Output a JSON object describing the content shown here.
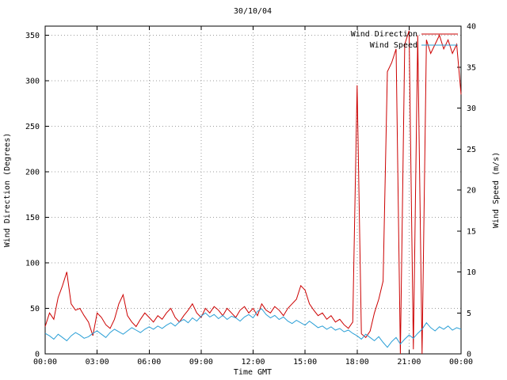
{
  "chart_data": {
    "type": "line",
    "title": "30/10/04",
    "xlabel": "Time GMT",
    "y_left_label": "Wind Direction (Degrees)",
    "y_right_label": "Wind Speed (m/s)",
    "grid": true,
    "legend_position": "top-right-inside",
    "x_range_hours": [
      0,
      24
    ],
    "x_tick_hours": [
      0,
      3,
      6,
      9,
      12,
      15,
      18,
      21,
      24
    ],
    "x_tick_labels": [
      "00:00",
      "03:00",
      "06:00",
      "09:00",
      "12:00",
      "15:00",
      "18:00",
      "21:00",
      "00:00"
    ],
    "y_left": {
      "range": [
        0,
        360
      ],
      "ticks": [
        0,
        50,
        100,
        150,
        200,
        250,
        300,
        350
      ]
    },
    "y_right": {
      "range": [
        0,
        40
      ],
      "ticks": [
        0,
        5,
        10,
        15,
        20,
        25,
        30,
        35,
        40
      ]
    },
    "grid_color": "#9c9c9c",
    "x_hours": [
      0,
      0.25,
      0.5,
      0.75,
      1,
      1.25,
      1.5,
      1.75,
      2,
      2.25,
      2.5,
      2.75,
      3,
      3.25,
      3.5,
      3.75,
      4,
      4.25,
      4.5,
      4.75,
      5,
      5.25,
      5.5,
      5.75,
      6,
      6.25,
      6.5,
      6.75,
      7,
      7.25,
      7.5,
      7.75,
      8,
      8.25,
      8.5,
      8.75,
      9,
      9.25,
      9.5,
      9.75,
      10,
      10.25,
      10.5,
      10.75,
      11,
      11.25,
      11.5,
      11.75,
      12,
      12.25,
      12.5,
      12.75,
      13,
      13.25,
      13.5,
      13.75,
      14,
      14.25,
      14.5,
      14.75,
      15,
      15.25,
      15.5,
      15.75,
      16,
      16.25,
      16.5,
      16.75,
      17,
      17.25,
      17.5,
      17.75,
      18,
      18.25,
      18.5,
      18.75,
      19,
      19.25,
      19.5,
      19.75,
      20,
      20.25,
      20.5,
      20.75,
      21,
      21.25,
      21.5,
      21.75,
      22,
      22.25,
      22.5,
      22.75,
      23,
      23.25,
      23.5,
      23.75,
      24
    ],
    "series": [
      {
        "name": "Wind Direction",
        "axis": "left",
        "color": "#cc0000",
        "values": [
          30,
          45,
          38,
          62,
          75,
          90,
          55,
          48,
          50,
          42,
          35,
          20,
          45,
          40,
          32,
          28,
          38,
          55,
          65,
          42,
          35,
          30,
          38,
          45,
          40,
          35,
          42,
          38,
          45,
          50,
          40,
          35,
          42,
          48,
          55,
          45,
          40,
          50,
          45,
          52,
          48,
          42,
          50,
          45,
          40,
          48,
          52,
          45,
          50,
          42,
          55,
          48,
          45,
          52,
          48,
          42,
          50,
          55,
          60,
          75,
          70,
          55,
          48,
          42,
          45,
          38,
          42,
          35,
          38,
          32,
          28,
          35,
          295,
          22,
          18,
          25,
          45,
          60,
          80,
          310,
          320,
          335,
          0,
          340,
          355,
          5,
          350,
          0,
          345,
          330,
          340,
          350,
          335,
          345,
          330,
          340,
          285
        ]
      },
      {
        "name": "Wind Speed",
        "axis": "right",
        "color": "#2a9fd6",
        "values": [
          2.5,
          2.2,
          1.8,
          2.4,
          2,
          1.6,
          2.2,
          2.6,
          2.3,
          1.9,
          2.1,
          2.5,
          2.8,
          2.4,
          2,
          2.6,
          3,
          2.7,
          2.4,
          2.8,
          3.2,
          2.9,
          2.6,
          3,
          3.3,
          3,
          3.4,
          3.1,
          3.5,
          3.8,
          3.4,
          3.9,
          4.2,
          3.8,
          4.4,
          4,
          4.6,
          5,
          4.5,
          4.8,
          4.3,
          4.7,
          4.2,
          4.6,
          4.4,
          4,
          4.5,
          4.8,
          4.4,
          5.2,
          5.5,
          4.8,
          4.4,
          4.7,
          4.2,
          4.5,
          4,
          3.7,
          4.1,
          3.8,
          3.5,
          4,
          3.6,
          3.2,
          3.4,
          3,
          3.3,
          2.9,
          3.1,
          2.7,
          2.9,
          2.5,
          2.2,
          1.8,
          2.4,
          2,
          1.6,
          2.1,
          1.4,
          0.8,
          1.5,
          2,
          1.2,
          1.8,
          2.3,
          1.9,
          2.5,
          3,
          3.8,
          3.2,
          2.8,
          3.3,
          3,
          3.4,
          2.9,
          3.2,
          3
        ]
      }
    ]
  }
}
